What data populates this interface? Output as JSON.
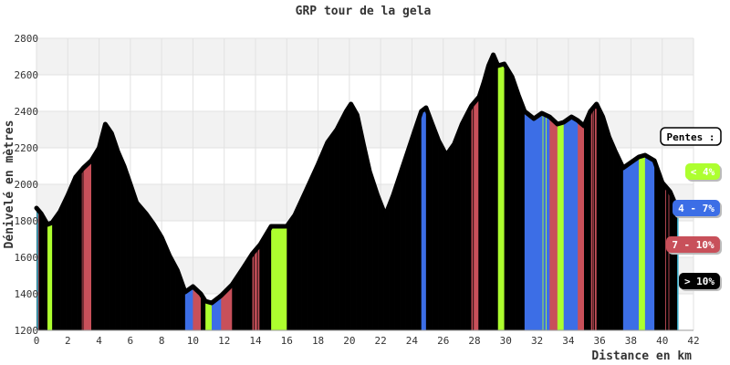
{
  "chart_data": {
    "type": "area",
    "title": "GRP tour de la gela",
    "xlabel": "Distance en km",
    "ylabel": "Dénivelé en mètres",
    "xlim": [
      0,
      42
    ],
    "ylim": [
      1200,
      2800
    ],
    "x_ticks": [
      0,
      2,
      4,
      6,
      8,
      10,
      12,
      14,
      16,
      18,
      20,
      22,
      24,
      26,
      28,
      30,
      32,
      34,
      36,
      38,
      40,
      42
    ],
    "y_ticks": [
      1200,
      1400,
      1600,
      1800,
      2000,
      2200,
      2400,
      2600,
      2800
    ],
    "grid": true,
    "legend_position": "right",
    "legend": {
      "title": "Pentes :",
      "items": [
        {
          "label": "< 4%",
          "color": "#adff2f",
          "text_color": "#ffffff"
        },
        {
          "label": "4 - 7%",
          "color": "#3c6ee6",
          "text_color": "#ffffff"
        },
        {
          "label": "7 - 10%",
          "color": "#c8505a",
          "text_color": "#ffffff"
        },
        {
          "label": "> 10%",
          "color": "#000000",
          "text_color": "#ffffff"
        }
      ]
    },
    "profile": {
      "x": [
        0,
        0.3,
        0.7,
        1.0,
        1.5,
        2.0,
        2.5,
        3.0,
        3.5,
        4.0,
        4.4,
        4.8,
        5.2,
        5.6,
        6.0,
        6.4,
        7.0,
        7.5,
        8.0,
        8.5,
        9.0,
        9.5,
        10.0,
        10.5,
        10.8,
        11.2,
        11.8,
        12.5,
        13.2,
        13.8,
        14.3,
        15.0,
        16.0,
        16.5,
        17.2,
        18.0,
        18.6,
        19.2,
        19.8,
        20.1,
        20.5,
        20.9,
        21.3,
        21.8,
        22.3,
        22.8,
        23.5,
        24.2,
        24.6,
        24.9,
        25.3,
        25.7,
        26.2,
        26.7,
        27.2,
        27.8,
        28.3,
        28.6,
        28.9,
        29.2,
        29.5,
        29.9,
        30.4,
        30.8,
        31.2,
        31.8,
        32.3,
        32.8,
        33.3,
        33.7,
        34.2,
        34.6,
        35.0,
        35.4,
        35.8,
        36.2,
        36.6,
        37.0,
        37.5,
        38.0,
        38.5,
        38.9,
        39.5,
        40.0,
        40.5,
        40.9,
        41.0
      ],
      "y": [
        1870,
        1840,
        1780,
        1790,
        1850,
        1940,
        2040,
        2090,
        2130,
        2200,
        2330,
        2280,
        2180,
        2100,
        2000,
        1900,
        1840,
        1780,
        1710,
        1610,
        1530,
        1410,
        1440,
        1400,
        1360,
        1350,
        1390,
        1450,
        1540,
        1620,
        1670,
        1770,
        1770,
        1830,
        1960,
        2110,
        2230,
        2300,
        2400,
        2440,
        2380,
        2220,
        2070,
        1940,
        1830,
        1940,
        2120,
        2300,
        2400,
        2420,
        2330,
        2240,
        2160,
        2220,
        2330,
        2430,
        2480,
        2560,
        2650,
        2710,
        2650,
        2660,
        2590,
        2490,
        2400,
        2360,
        2390,
        2370,
        2330,
        2340,
        2370,
        2350,
        2320,
        2400,
        2440,
        2370,
        2260,
        2180,
        2090,
        2120,
        2150,
        2160,
        2130,
        2010,
        1960,
        1880,
        1860
      ]
    }
  }
}
